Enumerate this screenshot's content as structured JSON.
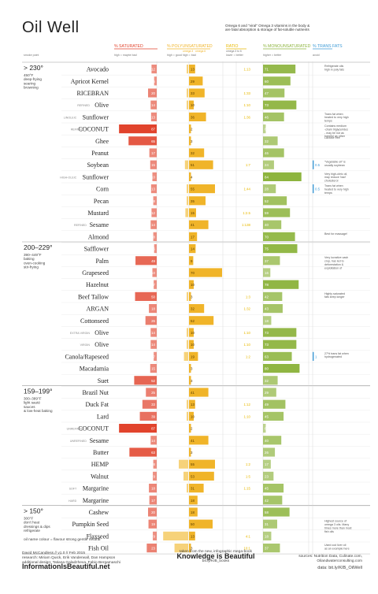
{
  "title": "Oil Well",
  "intro": "Omega 6 and \"viral\" Omega 3 vitamins in the body & are fatal absorption & storage of fat-soluble nutrients",
  "colors": {
    "saturated": "#e1432c",
    "poly": "#f0b429",
    "mono": "#8db43e",
    "trans": "#3c9ad6",
    "ratio": "#e8b800",
    "grid": "#cfcfcf",
    "text": "#333333"
  },
  "headers": {
    "saturated": "% SATURATED",
    "poly": "% POLYUNSATURATED",
    "ratio": "RATIO",
    "mono": "% MONOUNSATURATED",
    "trans": "% TRANS FATS"
  },
  "subheaders": {
    "smoke": "smoke point",
    "saturated": "high = maybe bad",
    "omega3": "omega 3",
    "omega6": "omega 6",
    "poly": "high = good   high = bad",
    "ratio": "omega 3 to 6",
    "ratio2": "lower = better",
    "mono": "higher = better",
    "trans": "avoid"
  },
  "groups": [
    {
      "temp": "> 230°",
      "lines": [
        "450°F",
        "deep-frying",
        "searing",
        "browning"
      ]
    },
    {
      "temp": "200–229°",
      "lines": [
        "390–449°F",
        "baking",
        "oven-cooking",
        "stir-frying"
      ]
    },
    {
      "temp": "159–199°",
      "lines": [
        "300–389°F",
        "light sauté",
        "sauces",
        "& low-heat baking"
      ]
    },
    {
      "temp": "> 150°",
      "lines": [
        "300°F",
        "don't heat",
        "dressings & dips",
        "refrigerate"
      ]
    }
  ],
  "oils": [
    {
      "pre": "",
      "name": "Avocado",
      "sat": 12,
      "o3": 1,
      "o6": 13,
      "poly_label": "13",
      "ratio": "1:13",
      "mono": 71,
      "trans": 0,
      "note": "Refrigerate oils high in poly fats"
    },
    {
      "pre": "",
      "name": "Apricot Kernel",
      "sat": 6,
      "o3": 0,
      "o6": 29,
      "poly_label": "29",
      "ratio": "",
      "mono": 60,
      "trans": 0,
      "note": ""
    },
    {
      "pre": "",
      "name": "RICEBRAN",
      "sat": 20,
      "o3": 1,
      "o6": 33,
      "poly_label": "33",
      "ratio": "1:33",
      "mono": 47,
      "trans": 0,
      "note": ""
    },
    {
      "pre": "REFINED",
      "name": "Olive",
      "sat": 14,
      "o3": 1,
      "o6": 10,
      "poly_label": "10",
      "ratio": "1:10",
      "mono": 73,
      "trans": 0,
      "note": ""
    },
    {
      "pre": "LINOLEIC",
      "name": "Sunflower",
      "sat": 13,
      "o3": 0,
      "o6": 36,
      "poly_label": "36",
      "ratio": "1:36",
      "mono": 46,
      "trans": 0,
      "note": "Trans fat when heated to very high temps"
    },
    {
      "pre": "REFINED",
      "name": "COCONUT",
      "sat": 87,
      "o3": 0,
      "o6": 2,
      "poly_label": "2",
      "ratio": "",
      "mono": 6,
      "trans": 0,
      "note": "Contains medium -chain triglycerides - may be not as harmful as other saturated fats"
    },
    {
      "pre": "",
      "name": "Ghee",
      "sat": 65,
      "o3": 0,
      "o6": 3,
      "poly_label": "3",
      "ratio": "",
      "mono": 32,
      "trans": 0,
      "note": "Lactose free"
    },
    {
      "pre": "",
      "name": "Peanut",
      "sat": 17,
      "o3": 0,
      "o6": 32,
      "poly_label": "32",
      "ratio": "",
      "mono": 46,
      "trans": 0,
      "note": ""
    },
    {
      "pre": "",
      "name": "Soybean",
      "sat": 15,
      "o3": 7,
      "o6": 51,
      "poly_label": "51",
      "ratio": "1:7",
      "mono": 24,
      "trans": 0.5,
      "note": "\"Vegetable oil\" is usually soybean"
    },
    {
      "pre": "HIGH-OLEIC",
      "name": "Sunflower",
      "sat": 10,
      "o3": 0,
      "o6": 4,
      "poly_label": "4",
      "ratio": "",
      "mono": 84,
      "trans": 0,
      "note": "Very high-oleic oil, may reduce 'bad' cholesterol"
    },
    {
      "pre": "",
      "name": "Corn",
      "sat": 13,
      "o3": 1,
      "o6": 55,
      "poly_label": "55",
      "ratio": "1:44",
      "mono": 28,
      "trans": 0.5,
      "note": "Trans fat when heated to very high temps"
    },
    {
      "pre": "",
      "name": "Pecan",
      "sat": 8,
      "o3": 1,
      "o6": 35,
      "poly_label": "35",
      "ratio": "",
      "mono": 52,
      "trans": 0,
      "note": ""
    },
    {
      "pre": "",
      "name": "Mustard",
      "sat": 12,
      "o3": 6,
      "o6": 15,
      "poly_label": "15",
      "ratio": "1:2.5",
      "mono": 59,
      "trans": 0,
      "note": ""
    },
    {
      "pre": "REFINED",
      "name": "Sesame",
      "sat": 14,
      "o3": 0,
      "o6": 41,
      "poly_label": "41",
      "ratio": "1:138",
      "mono": 40,
      "trans": 0,
      "note": ""
    },
    {
      "pre": "",
      "name": "Almond",
      "sat": 8,
      "o3": 0,
      "o6": 17,
      "poly_label": "17",
      "ratio": "",
      "mono": 70,
      "trans": 0,
      "note": "Best for massage!"
    },
    {
      "pre": "",
      "name": "Safflower",
      "sat": 6,
      "o3": 0,
      "o6": 14,
      "poly_label": "14",
      "ratio": "",
      "mono": 75,
      "trans": 0,
      "note": ""
    },
    {
      "pre": "",
      "name": "Palm",
      "sat": 49,
      "o3": 0,
      "o6": 9,
      "poly_label": "9",
      "ratio": "",
      "mono": 37,
      "trans": 0,
      "note": "Very lucrative cash crop, has led to deforestation & exploitation of native peoples"
    },
    {
      "pre": "",
      "name": "Grapeseed",
      "sat": 10,
      "o3": 0,
      "o6": 70,
      "poly_label": "70",
      "ratio": "",
      "mono": 16,
      "trans": 0,
      "note": ""
    },
    {
      "pre": "",
      "name": "Hazelnut",
      "sat": 7,
      "o3": 0,
      "o6": 10,
      "poly_label": "10",
      "ratio": "",
      "mono": 78,
      "trans": 0,
      "note": ""
    },
    {
      "pre": "",
      "name": "Beef Tallow",
      "sat": 50,
      "o3": 1,
      "o6": 3,
      "poly_label": "3",
      "ratio": "1:3",
      "mono": 42,
      "trans": 0,
      "note": "Highly saturated fats keep longer"
    },
    {
      "pre": "",
      "name": "ARGAN",
      "sat": 18,
      "o3": 0,
      "o6": 32,
      "poly_label": "32",
      "ratio": "1:32",
      "mono": 43,
      "trans": 0,
      "note": ""
    },
    {
      "pre": "",
      "name": "Cottonseed",
      "sat": 26,
      "o3": 0,
      "o6": 52,
      "poly_label": "52",
      "ratio": "",
      "mono": 18,
      "trans": 0,
      "note": ""
    },
    {
      "pre": "EXTRA VIRGIN",
      "name": "Olive",
      "sat": 14,
      "o3": 1,
      "o6": 10,
      "poly_label": "10",
      "ratio": "1:10",
      "mono": 73,
      "trans": 0,
      "note": ""
    },
    {
      "pre": "VIRGIN",
      "name": "Olive",
      "sat": 14,
      "o3": 1,
      "o6": 10,
      "poly_label": "10",
      "ratio": "1:10",
      "mono": 73,
      "trans": 0,
      "note": ""
    },
    {
      "pre": "",
      "name": "Canola/Rapeseed",
      "sat": 7,
      "o3": 9,
      "o6": 19,
      "poly_label": "19",
      "ratio": "1:2",
      "mono": 63,
      "trans": 1,
      "note": "27% trans fat when hydrogenated"
    },
    {
      "pre": "",
      "name": "Macadamia",
      "sat": 15,
      "o3": 0,
      "o6": 3,
      "poly_label": "3",
      "ratio": "",
      "mono": 80,
      "trans": 0,
      "note": ""
    },
    {
      "pre": "",
      "name": "Suet",
      "sat": 52,
      "o3": 0,
      "o6": 3,
      "poly_label": "3",
      "ratio": "",
      "mono": 32,
      "trans": 0,
      "note": ""
    },
    {
      "pre": "",
      "name": "Brazil Nut",
      "sat": 25,
      "o3": 0,
      "o6": 41,
      "poly_label": "41",
      "ratio": "",
      "mono": 29,
      "trans": 0,
      "note": ""
    },
    {
      "pre": "",
      "name": "Duck Fat",
      "sat": 33,
      "o3": 1,
      "o6": 13,
      "poly_label": "13",
      "ratio": "1:12",
      "mono": 49,
      "trans": 0,
      "note": ""
    },
    {
      "pre": "",
      "name": "Lard",
      "sat": 39,
      "o3": 1,
      "o6": 10,
      "poly_label": "10",
      "ratio": "1:10",
      "mono": 45,
      "trans": 0,
      "note": ""
    },
    {
      "pre": "UNREFINED",
      "name": "COCONUT",
      "sat": 87,
      "o3": 0,
      "o6": 2,
      "poly_label": "2",
      "ratio": "",
      "mono": 6,
      "trans": 0,
      "note": ""
    },
    {
      "pre": "UNREFINED",
      "name": "Sesame",
      "sat": 14,
      "o3": 0,
      "o6": 41,
      "poly_label": "41",
      "ratio": "",
      "mono": 40,
      "trans": 0,
      "note": ""
    },
    {
      "pre": "",
      "name": "Butter",
      "sat": 63,
      "o3": 0,
      "o6": 3,
      "poly_label": "3",
      "ratio": "",
      "mono": 26,
      "trans": 0,
      "note": ""
    },
    {
      "pre": "",
      "name": "HEMP",
      "sat": 8,
      "o3": 20,
      "o6": 55,
      "poly_label": "55",
      "ratio": "1:2",
      "mono": 17,
      "trans": 0,
      "note": ""
    },
    {
      "pre": "",
      "name": "Walnut",
      "sat": 9,
      "o3": 10,
      "o6": 53,
      "poly_label": "53",
      "ratio": "1:5",
      "mono": 23,
      "trans": 0,
      "note": ""
    },
    {
      "pre": "SOFT",
      "name": "Margarine",
      "sat": 18,
      "o3": 2,
      "o6": 31,
      "poly_label": "31",
      "ratio": "1:15",
      "mono": 45,
      "trans": 0,
      "note": ""
    },
    {
      "pre": "HARD",
      "name": "Margarine",
      "sat": 17,
      "o3": 0,
      "o6": 18,
      "poly_label": "18",
      "ratio": "",
      "mono": 42,
      "trans": 0,
      "note": ""
    },
    {
      "pre": "",
      "name": "Cashew",
      "sat": 20,
      "o3": 0,
      "o6": 18,
      "poly_label": "18",
      "ratio": "",
      "mono": 58,
      "trans": 0,
      "note": ""
    },
    {
      "pre": "",
      "name": "Pumpkin Seed",
      "sat": 19,
      "o3": 0,
      "o6": 50,
      "poly_label": "50",
      "ratio": "",
      "mono": 31,
      "trans": 0,
      "note": "Highest source of omega 3 oils. Many times more than most fish oils"
    },
    {
      "pre": "",
      "name": "Flaxseed",
      "sat": 9,
      "o3": 53,
      "o6": 13,
      "poly_label": "13",
      "ratio": "4:1",
      "mono": 18,
      "trans": 0,
      "note": ""
    },
    {
      "pre": "",
      "name": "Fish Oil",
      "sat": 23,
      "o3": 29,
      "o6": 3,
      "poly_label": "3",
      "ratio": "10:1",
      "mono": 37,
      "trans": 0,
      "note": "Used cod liver oil as an example here"
    }
  ],
  "chart_data": {
    "type": "bar",
    "title": "Oil Well",
    "categories": [
      "Avocado",
      "Apricot Kernel",
      "RICEBRAN",
      "Refined Olive",
      "Linoleic Sunflower",
      "Refined Coconut",
      "Ghee",
      "Peanut",
      "Soybean",
      "High-oleic Sunflower",
      "Corn",
      "Pecan",
      "Mustard",
      "Refined Sesame",
      "Almond",
      "Safflower",
      "Palm",
      "Grapeseed",
      "Hazelnut",
      "Beef Tallow",
      "ARGAN",
      "Cottonseed",
      "Extra virgin Olive",
      "Virgin Olive",
      "Canola/Rapeseed",
      "Macadamia",
      "Suet",
      "Brazil Nut",
      "Duck Fat",
      "Lard",
      "Unrefined Coconut",
      "Unrefined Sesame",
      "Butter",
      "HEMP",
      "Walnut",
      "Soft Margarine",
      "Hard Margarine",
      "Cashew",
      "Pumpkin Seed",
      "Flaxseed",
      "Fish Oil"
    ],
    "series": [
      {
        "name": "% SATURATED",
        "values": [
          12,
          6,
          20,
          14,
          13,
          87,
          65,
          17,
          15,
          10,
          13,
          8,
          12,
          14,
          8,
          6,
          49,
          10,
          7,
          50,
          18,
          26,
          14,
          14,
          7,
          15,
          52,
          25,
          33,
          39,
          87,
          14,
          63,
          8,
          9,
          18,
          17,
          20,
          19,
          9,
          23
        ]
      },
      {
        "name": "% POLYUNSATURATED",
        "values": [
          13,
          29,
          33,
          10,
          36,
          2,
          3,
          32,
          51,
          4,
          55,
          35,
          15,
          41,
          17,
          14,
          9,
          70,
          10,
          3,
          32,
          52,
          10,
          10,
          19,
          3,
          3,
          41,
          13,
          10,
          2,
          41,
          3,
          55,
          53,
          31,
          18,
          18,
          50,
          13,
          3
        ]
      },
      {
        "name": "% MONOUNSATURATED",
        "values": [
          71,
          60,
          47,
          73,
          46,
          6,
          32,
          46,
          24,
          84,
          28,
          52,
          59,
          40,
          70,
          75,
          37,
          16,
          78,
          42,
          43,
          18,
          73,
          73,
          63,
          80,
          32,
          29,
          49,
          45,
          6,
          40,
          26,
          17,
          23,
          45,
          42,
          58,
          31,
          18,
          37
        ]
      },
      {
        "name": "% TRANS FATS",
        "values": [
          0,
          0,
          0,
          0,
          0,
          0,
          0,
          0,
          0.5,
          0,
          0.5,
          0,
          0,
          0,
          0,
          0,
          0,
          0,
          0,
          0,
          0,
          0,
          0,
          0,
          1,
          0,
          0,
          0,
          0,
          0,
          0,
          0,
          0,
          0,
          0,
          0,
          0,
          0,
          0,
          0,
          0
        ]
      }
    ],
    "xlim": [
      0,
      100
    ],
    "legend": "top"
  },
  "footnote": "oil name colour = flavour strong gentle neutral",
  "credits": [
    "David McCandless // v1.0 // Feb 2015",
    "research: Miriam Quick, Erik Vanderwall, Dan Hampson",
    "additional design: Tatiana Galadzheva, Fabio Bergamaschi"
  ],
  "brand": "InformationIsBeautiful.net",
  "book_line": "taken from the new, infographic mega-book",
  "book_title": "Knowledge is Beautiful",
  "book_link": "bit.ly/KIB_books",
  "sources": [
    "sources: Nutrition Data, Culinate.com,",
    "Oilandwaterconsulting.com"
  ],
  "data_link": "data: bit.ly/KIB_OilWell"
}
